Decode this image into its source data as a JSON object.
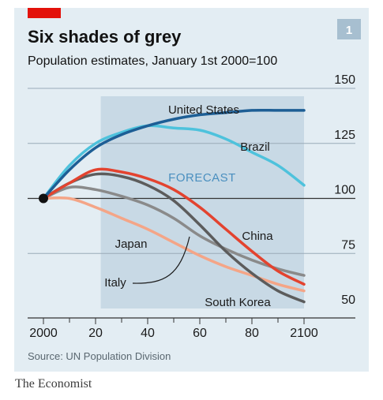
{
  "chart_data": {
    "type": "line",
    "title": "Six shades of grey",
    "subtitle": "Population estimates, January 1st 2000=100",
    "chart_number": "1",
    "source": "Source: UN Population Division",
    "forecast_label": "FORECAST",
    "forecast_start": 2022,
    "forecast_end": 2100,
    "start_value": 100,
    "xlim": [
      2000,
      2100
    ],
    "ylim": [
      50,
      150
    ],
    "x_ticks": [
      {
        "value": 2000,
        "label": "2000"
      },
      {
        "value": 2020,
        "label": "20"
      },
      {
        "value": 2040,
        "label": "40"
      },
      {
        "value": 2060,
        "label": "60"
      },
      {
        "value": 2080,
        "label": "80"
      },
      {
        "value": 2100,
        "label": "2100"
      }
    ],
    "y_ticks": [
      {
        "value": 50,
        "label": "50"
      },
      {
        "value": 75,
        "label": "75"
      },
      {
        "value": 100,
        "label": "100"
      },
      {
        "value": 125,
        "label": "125"
      },
      {
        "value": 150,
        "label": "150"
      }
    ],
    "x": [
      2000,
      2010,
      2020,
      2030,
      2040,
      2050,
      2060,
      2070,
      2080,
      2090,
      2100
    ],
    "series": [
      {
        "name": "Italy",
        "color": "#8a8a8a",
        "values": [
          100,
          105,
          104,
          101,
          97,
          91,
          83,
          77,
          72,
          68,
          65
        ]
      },
      {
        "name": "Japan",
        "color": "#f4a587",
        "values": [
          100,
          100,
          96,
          91,
          86,
          80,
          74,
          69,
          65,
          61,
          58
        ]
      },
      {
        "name": "South Korea",
        "color": "#5c5c5c",
        "values": [
          100,
          107,
          111,
          110,
          106,
          99,
          88,
          76,
          66,
          58,
          53
        ]
      },
      {
        "name": "China",
        "color": "#e3432f",
        "values": [
          100,
          107,
          113,
          112,
          109,
          104,
          96,
          86,
          76,
          67,
          61
        ]
      },
      {
        "name": "Brazil",
        "color": "#4ec2dc",
        "values": [
          100,
          115,
          125,
          130,
          133,
          132,
          131,
          127,
          121,
          115,
          106
        ]
      },
      {
        "name": "United States",
        "color": "#1d5e95",
        "values": [
          100,
          113,
          123,
          129,
          133,
          136,
          138,
          139,
          140,
          140,
          140
        ]
      }
    ],
    "colors": {
      "panel_background": "#e3edf3",
      "forecast_shade": "#c8d9e5",
      "gridline": "#9aabb8",
      "zero_line": "#333333",
      "accent_bar": "#e3120b",
      "badge": "#a7bfd0"
    }
  },
  "footer": {
    "publisher": "The Economist"
  }
}
